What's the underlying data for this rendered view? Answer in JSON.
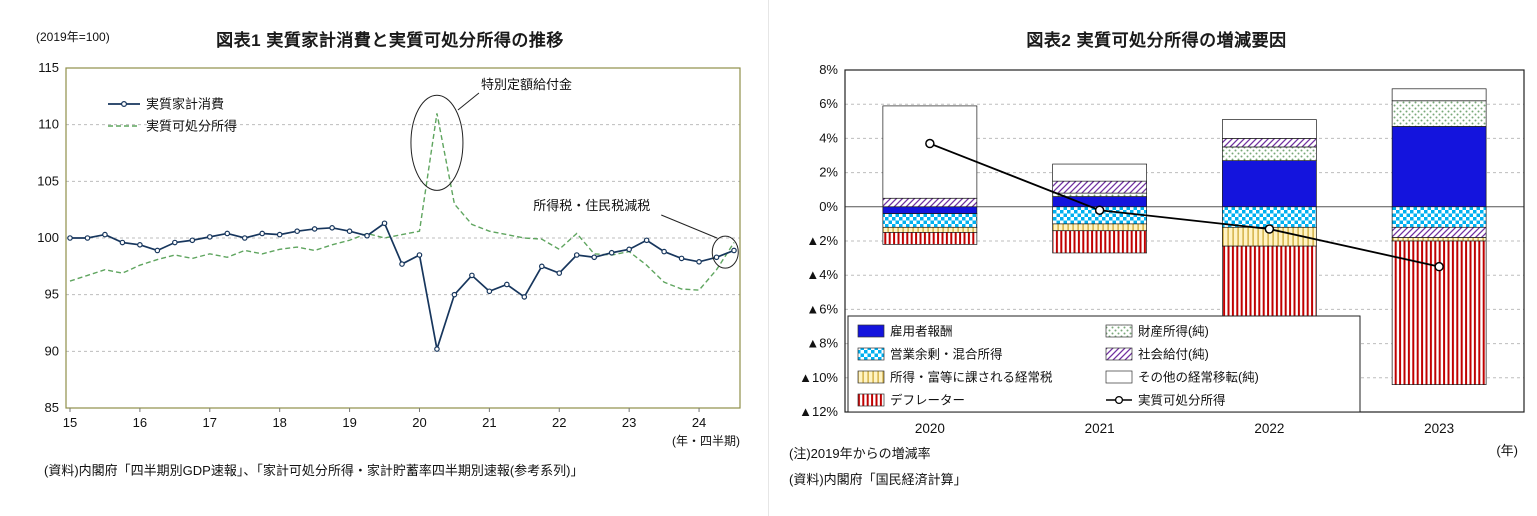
{
  "chart_data": [
    {
      "type": "line",
      "title": "図表1 実質家計消費と実質可処分所得の推移",
      "index_note": "(2019年=100)",
      "x_unit": "(年・四半期)",
      "source": "(資料)内閣府「四半期別GDP速報」、「家計可処分所得・家計貯蓄率四半期別速報(参考系列)」",
      "ylim": [
        85,
        115
      ],
      "yticks": [
        85,
        90,
        95,
        100,
        105,
        110,
        115
      ],
      "x_tick_labels": [
        "15",
        "16",
        "17",
        "18",
        "19",
        "20",
        "21",
        "22",
        "23",
        "24"
      ],
      "quarters_per_year": 4,
      "frame_color": "#8f8f4a",
      "grid_color": "#bdbdbd",
      "series": [
        {
          "name": "実質家計消費",
          "line_style": "solid",
          "marker": true,
          "color": "#17365D",
          "values": [
            100.0,
            100.0,
            100.3,
            99.6,
            99.4,
            98.9,
            99.6,
            99.8,
            100.1,
            100.4,
            100.0,
            100.4,
            100.3,
            100.6,
            100.8,
            100.9,
            100.6,
            100.2,
            101.3,
            97.7,
            98.5,
            90.2,
            95.0,
            96.7,
            95.3,
            95.9,
            94.8,
            97.5,
            96.9,
            98.5,
            98.3,
            98.7,
            99.0,
            99.8,
            98.8,
            98.2,
            97.9,
            98.3,
            98.9
          ]
        },
        {
          "name": "実質可処分所得",
          "line_style": "dashed",
          "marker": false,
          "color": "#5FA55F",
          "values": [
            96.2,
            96.7,
            97.2,
            96.9,
            97.6,
            98.1,
            98.5,
            98.2,
            98.6,
            98.3,
            98.9,
            98.6,
            99.0,
            99.2,
            98.9,
            99.4,
            99.8,
            100.4,
            100.0,
            100.3,
            100.6,
            111.0,
            103.0,
            101.2,
            100.6,
            100.3,
            100.0,
            99.9,
            99.0,
            100.4,
            98.6,
            98.5,
            98.8,
            97.6,
            96.1,
            95.5,
            95.4,
            97.2,
            99.6
          ]
        }
      ],
      "annotations": [
        {
          "text": "特別定額給付金"
        },
        {
          "text": "所得税・住民税減税"
        }
      ]
    },
    {
      "type": "stacked-bar-line",
      "title": "図表2 実質可処分所得の増減要因",
      "note": "(注)2019年からの増減率",
      "source": "(資料)内閣府「国民経済計算」",
      "x_unit": "(年)",
      "categories": [
        "2020",
        "2021",
        "2022",
        "2023"
      ],
      "ylim": [
        -12,
        8
      ],
      "ytick_step": 2,
      "negative_prefix": "▲",
      "series": [
        {
          "name": "雇用者報酬",
          "fill_style": "solid",
          "color": "#1414DD",
          "values": [
            -0.4,
            0.6,
            2.7,
            4.7
          ]
        },
        {
          "name": "営業余剰・混合所得",
          "fill_style": "checker",
          "color": "#00B0F0",
          "values": [
            -0.8,
            -1.0,
            -1.2,
            -1.2
          ]
        },
        {
          "name": "所得・富等に課される経常税",
          "fill_style": "vstripe",
          "color": "#C9A227",
          "bg": "#FFF3C4",
          "stripe_width": 1.2,
          "period": 5,
          "values": [
            -0.3,
            -0.4,
            -1.1,
            -0.2
          ]
        },
        {
          "name": "デフレーター",
          "fill_style": "vstripe",
          "color": "#C00000",
          "bg": "#FFFFFF",
          "stripe_width": 2,
          "period": 4.4,
          "values": [
            -0.7,
            -1.3,
            -4.1,
            -8.4
          ]
        },
        {
          "name": "財産所得(純)",
          "fill_style": "dots",
          "color": "#79A979",
          "bg": "#FFFFFF",
          "values": [
            0.0,
            0.2,
            0.8,
            1.5
          ]
        },
        {
          "name": "社会給付(純)",
          "fill_style": "hatch",
          "color": "#7030A0",
          "bg": "#FFFFFF",
          "values": [
            0.5,
            0.7,
            0.5,
            -0.6
          ]
        },
        {
          "name": "その他の経常移転(純)",
          "fill_style": "none",
          "color": "#FFFFFF",
          "values": [
            5.4,
            1.0,
            1.1,
            0.7
          ]
        }
      ],
      "line_series": {
        "name": "実質可処分所得",
        "color": "#000000",
        "values": [
          3.7,
          -0.2,
          -1.3,
          -3.5
        ]
      }
    }
  ]
}
